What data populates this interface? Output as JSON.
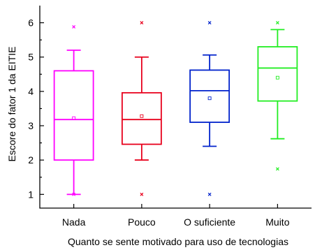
{
  "chart_data": {
    "type": "box",
    "xlabel": "Quanto se sente motivado para uso de tecnologias",
    "ylabel": "Escore do fator 1 da EITIE",
    "ylim": [
      0.6,
      6.5
    ],
    "yticks": [
      "1",
      "2",
      "3",
      "4",
      "5",
      "6"
    ],
    "categories": [
      "Nada",
      "Pouco",
      "O suficiente",
      "Muito"
    ],
    "colors": [
      "#ff00ff",
      "#e8001c",
      "#0022cc",
      "#22ee22"
    ],
    "boxes": [
      {
        "category": "Nada",
        "whisker_low": 1.0,
        "q1": 2.0,
        "median": 3.18,
        "q3": 4.6,
        "whisker_high": 5.2,
        "mean": 3.22,
        "outliers": [
          5.88,
          1.0
        ]
      },
      {
        "category": "Pouco",
        "whisker_low": 2.0,
        "q1": 2.46,
        "median": 3.18,
        "q3": 3.96,
        "whisker_high": 5.0,
        "mean": 3.28,
        "outliers": [
          6.0,
          1.0
        ]
      },
      {
        "category": "O suficiente",
        "whisker_low": 2.4,
        "q1": 3.1,
        "median": 4.02,
        "q3": 4.62,
        "whisker_high": 5.06,
        "mean": 3.8,
        "outliers": [
          6.0,
          1.0
        ]
      },
      {
        "category": "Muito",
        "whisker_low": 2.62,
        "q1": 3.72,
        "median": 4.68,
        "q3": 5.3,
        "whisker_high": 5.8,
        "mean": 4.4,
        "outliers": [
          6.0,
          1.74
        ]
      }
    ]
  }
}
